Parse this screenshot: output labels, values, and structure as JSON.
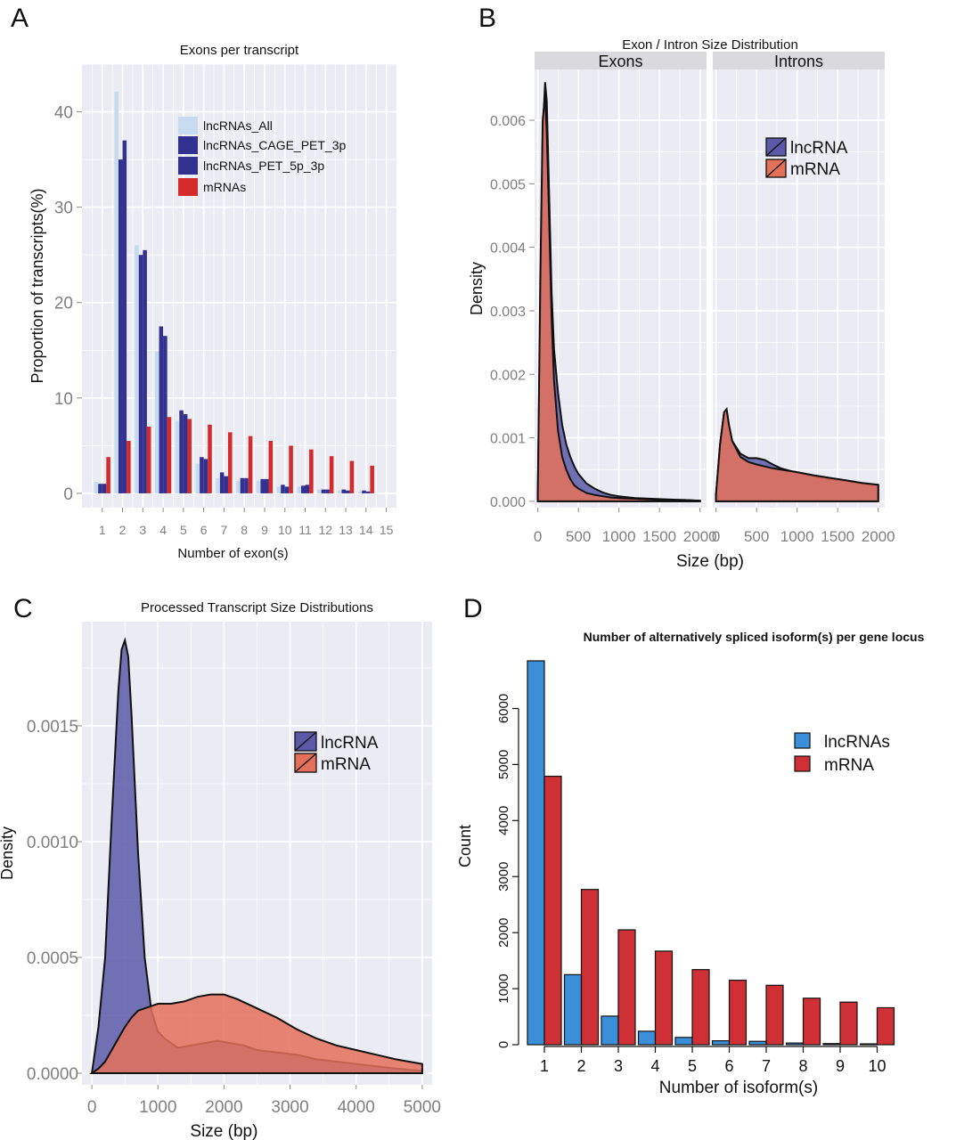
{
  "colors": {
    "lightblue": "#c6dbef",
    "navy": "#33318f",
    "red": "#d42a2a",
    "lncrna_fill": "#5c5aa8",
    "mrna_fill": "#e4705a",
    "d_blue": "#3b8fd8",
    "d_red": "#cf3035",
    "panel_bg": "#ebebf3",
    "strip_bg": "#d9d9de"
  },
  "panel_letters": {
    "a": "A",
    "b": "B",
    "c": "C",
    "d": "D"
  },
  "chart_data": [
    {
      "id": "A",
      "type": "bar",
      "title": "Exons per transcript",
      "xlabel": "Number of exon(s)",
      "ylabel": "Proportion of transcripts(%)",
      "xlim": [
        0,
        15.5
      ],
      "ylim": [
        -1.5,
        45
      ],
      "yticks": [
        0,
        10,
        20,
        30,
        40
      ],
      "xticks": [
        1,
        2,
        3,
        4,
        5,
        6,
        7,
        8,
        9,
        10,
        11,
        12,
        13,
        14,
        15
      ],
      "grid": true,
      "legend_position": "top-right",
      "series": [
        {
          "name": "lncRNAs_All",
          "color": "#c6dbef",
          "values": [
            1.2,
            42.1,
            26.0,
            14.9,
            7.6,
            3.1,
            1.6,
            1.3,
            1.3,
            0.7,
            0.7,
            0.4,
            0.3,
            0.2
          ]
        },
        {
          "name": "lncRNAs_CAGE_PET_3p",
          "color": "#33318f",
          "values": [
            1.0,
            35.0,
            25.0,
            17.5,
            8.7,
            3.8,
            2.2,
            1.6,
            1.5,
            0.9,
            0.8,
            0.4,
            0.4,
            0.3
          ]
        },
        {
          "name": "lncRNAs_PET_5p_3p",
          "color": "#33318f",
          "values": [
            1.0,
            37.0,
            25.5,
            16.5,
            8.3,
            3.6,
            1.8,
            1.6,
            1.5,
            0.7,
            0.9,
            0.4,
            0.3,
            0.2
          ]
        },
        {
          "name": "mRNAs",
          "color": "#d42a2a",
          "values": [
            3.8,
            5.5,
            7.0,
            8.0,
            7.8,
            7.2,
            6.4,
            6.0,
            5.5,
            5.0,
            4.6,
            3.9,
            3.4,
            2.9
          ]
        }
      ]
    },
    {
      "id": "B",
      "type": "area",
      "title": "Exon / Intron Size Distribution",
      "xlabel": "Size (bp)",
      "ylabel": "Density",
      "facets": [
        "Exons",
        "Introns"
      ],
      "xlim": [
        -40,
        2080
      ],
      "ylim": [
        -0.0001,
        0.0068
      ],
      "xticks": [
        0,
        500,
        1000,
        1500,
        2000
      ],
      "yticks": [
        0.0,
        0.001,
        0.002,
        0.003,
        0.004,
        0.005,
        0.006
      ],
      "ytick_labels": [
        "0.000",
        "0.001",
        "0.002",
        "0.003",
        "0.004",
        "0.005",
        "0.006"
      ],
      "grid": true,
      "legend_position": "top-right",
      "series": [
        {
          "name": "lncRNA",
          "color": "#5c5aa8",
          "exons": {
            "x": [
              0,
              30,
              60,
              90,
              110,
              140,
              170,
              200,
              250,
              300,
              350,
              400,
              450,
              500,
              600,
              700,
              800,
              900,
              1000,
              1200,
              1400,
              1600,
              1800,
              2000
            ],
            "y": [
              0.0001,
              0.003,
              0.0058,
              0.0066,
              0.0063,
              0.0048,
              0.0033,
              0.0024,
              0.0017,
              0.0012,
              0.0009,
              0.0007,
              0.00055,
              0.00043,
              0.00028,
              0.0002,
              0.00014,
              0.0001,
              8e-05,
              5e-05,
              4e-05,
              3e-05,
              2e-05,
              1e-05
            ]
          },
          "introns": {
            "x": [
              0,
              50,
              100,
              130,
              160,
              200,
              300,
              400,
              500,
              600,
              700,
              800,
              1000,
              1200,
              1400,
              1600,
              1800,
              2000
            ],
            "y": [
              0.0001,
              0.0009,
              0.0014,
              0.00145,
              0.0012,
              0.00095,
              0.00075,
              0.00068,
              0.00068,
              0.00065,
              0.00058,
              0.00052,
              0.00045,
              0.0004,
              0.00035,
              0.00032,
              0.00028,
              0.00025
            ]
          }
        },
        {
          "name": "mRNA",
          "color": "#e4705a",
          "exons": {
            "x": [
              0,
              30,
              60,
              90,
              110,
              140,
              170,
              200,
              250,
              300,
              350,
              400,
              450,
              500,
              600,
              700,
              800,
              900,
              1000,
              1200,
              1400,
              1600,
              1800,
              2000
            ],
            "y": [
              0.0001,
              0.0035,
              0.006,
              0.0064,
              0.0058,
              0.0044,
              0.0029,
              0.0019,
              0.0011,
              0.0007,
              0.0005,
              0.00035,
              0.00025,
              0.0002,
              0.00013,
              0.0001,
              8e-05,
              6e-05,
              5e-05,
              4e-05,
              3e-05,
              2e-05,
              2e-05,
              1e-05
            ]
          },
          "introns": {
            "x": [
              0,
              50,
              100,
              130,
              160,
              200,
              300,
              400,
              500,
              600,
              700,
              800,
              1000,
              1200,
              1400,
              1600,
              1800,
              2000
            ],
            "y": [
              0.0001,
              0.0009,
              0.0014,
              0.00145,
              0.0012,
              0.00095,
              0.0007,
              0.00062,
              0.00058,
              0.00055,
              0.00052,
              0.0005,
              0.00046,
              0.00041,
              0.00037,
              0.00033,
              0.00029,
              0.00026
            ]
          }
        }
      ]
    },
    {
      "id": "C",
      "type": "area",
      "title": "Processed Transcript Size Distributions",
      "xlabel": "Size (bp)",
      "ylabel": "Density",
      "xlim": [
        -150,
        5150
      ],
      "ylim": [
        -5e-05,
        0.00195
      ],
      "xticks": [
        0,
        1000,
        2000,
        3000,
        4000,
        5000
      ],
      "yticks": [
        0.0,
        0.0005,
        0.001,
        0.0015
      ],
      "ytick_labels": [
        "0.0000",
        "0.0005",
        "0.0010",
        "0.0015"
      ],
      "grid": true,
      "legend_position": "top-right",
      "series": [
        {
          "name": "lncRNA",
          "color": "#5c5aa8",
          "x": [
            0,
            100,
            200,
            300,
            400,
            450,
            500,
            550,
            600,
            700,
            800,
            900,
            1000,
            1100,
            1200,
            1300,
            1500,
            1700,
            1900,
            2100,
            2300,
            2500,
            2800,
            3100,
            3400,
            3700,
            4000,
            4300,
            4600,
            5000
          ],
          "y": [
            0.0,
            0.0002,
            0.0005,
            0.0011,
            0.00165,
            0.00183,
            0.00187,
            0.0018,
            0.00155,
            0.00095,
            0.0005,
            0.00027,
            0.00018,
            0.00015,
            0.00013,
            0.00011,
            0.00012,
            0.00013,
            0.00014,
            0.00013,
            0.00012,
            0.0001,
            9e-05,
            8e-05,
            6e-05,
            5e-05,
            4e-05,
            3e-05,
            2e-05,
            1e-05
          ]
        },
        {
          "name": "mRNA",
          "color": "#e4705a",
          "x": [
            0,
            100,
            200,
            300,
            400,
            500,
            600,
            700,
            800,
            900,
            1000,
            1200,
            1400,
            1600,
            1800,
            2000,
            2200,
            2500,
            2800,
            3100,
            3400,
            3700,
            4000,
            4300,
            4600,
            4800,
            5000
          ],
          "y": [
            0.0,
            2e-05,
            5e-05,
            0.0001,
            0.00015,
            0.0002,
            0.00024,
            0.00027,
            0.00028,
            0.00029,
            0.0003,
            0.0003,
            0.00031,
            0.00033,
            0.00034,
            0.00034,
            0.00032,
            0.00028,
            0.00024,
            0.00019,
            0.00015,
            0.00012,
            0.0001,
            8e-05,
            6e-05,
            5e-05,
            4e-05
          ]
        }
      ]
    },
    {
      "id": "D",
      "type": "bar",
      "title": "Number of alternatively spliced isoform(s) per gene locus",
      "xlabel": "Number of isoform(s)",
      "ylabel": "Count",
      "ylim": [
        0,
        7000
      ],
      "yticks": [
        0,
        1000,
        2000,
        3000,
        4000,
        5000,
        6000
      ],
      "categories": [
        "1",
        "2",
        "3",
        "4",
        "5",
        "6",
        "7",
        "8",
        "9",
        "10"
      ],
      "grid": false,
      "legend_position": "top-right",
      "series": [
        {
          "name": "lncRNAs",
          "color": "#3b8fd8",
          "values": [
            6850,
            1250,
            510,
            240,
            130,
            70,
            60,
            30,
            20,
            15
          ]
        },
        {
          "name": "mRNA",
          "color": "#cf3035",
          "values": [
            4790,
            2770,
            2050,
            1670,
            1340,
            1150,
            1060,
            830,
            760,
            660
          ]
        }
      ]
    }
  ]
}
